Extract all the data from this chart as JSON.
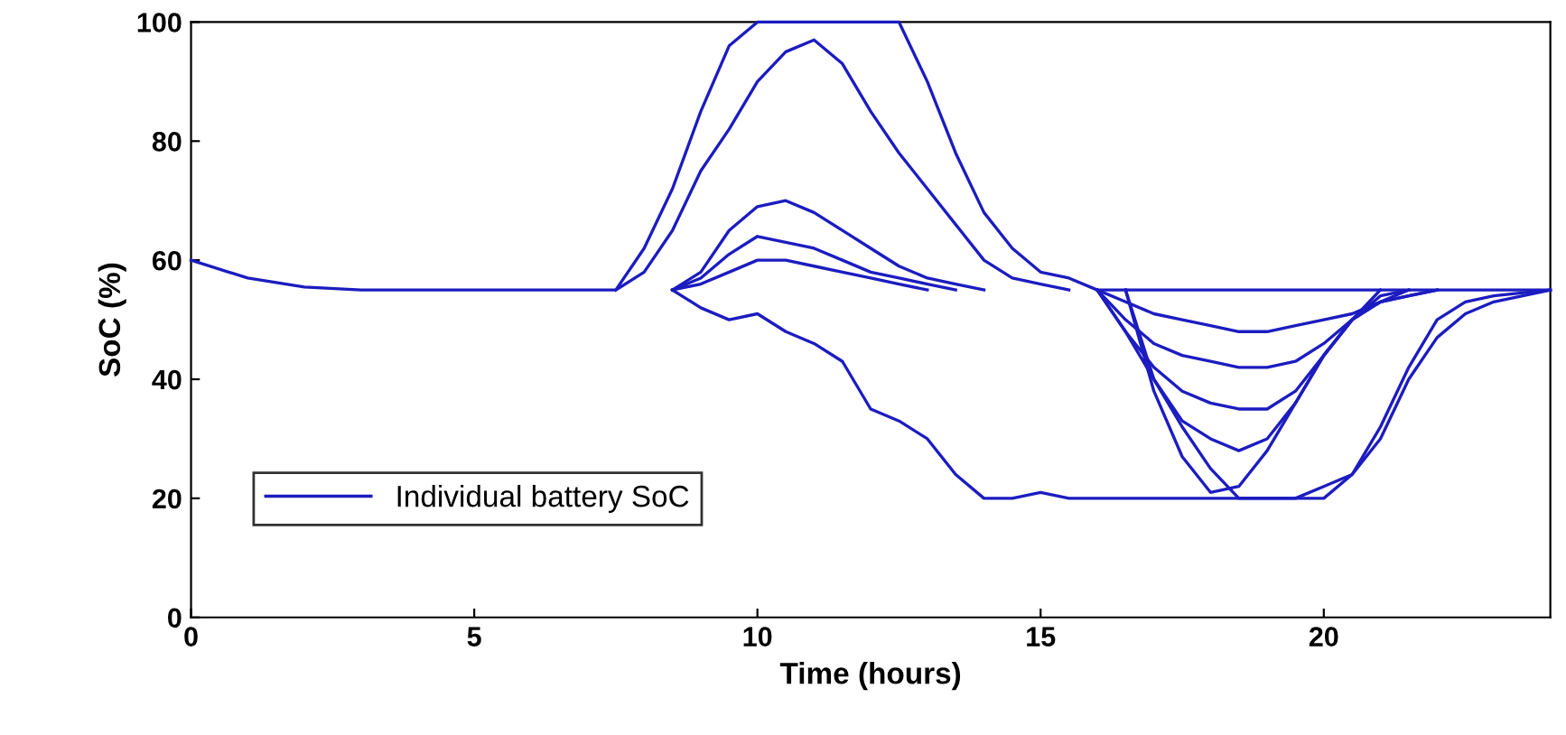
{
  "chart_data": {
    "type": "line",
    "xlabel": "Time (hours)",
    "ylabel": "SoC (%)",
    "xlim": [
      0,
      24
    ],
    "xticks": [
      0,
      5,
      10,
      15,
      20
    ],
    "ylim": [
      0,
      100
    ],
    "yticks": [
      0,
      20,
      40,
      60,
      80,
      100
    ],
    "grid": false,
    "legend": "bottom left",
    "marker": "none",
    "line_style": "solid",
    "series": [
      {
        "name": "Individual battery SoC",
        "color": "#1c1cc0",
        "x": [
          0,
          1,
          2,
          3,
          7.5,
          8,
          8.5,
          9,
          9.5,
          10,
          10.5,
          11,
          11.5,
          12,
          12.5,
          13,
          13.5,
          14,
          14.5,
          15,
          15.5,
          16,
          16.5,
          17,
          17.5,
          18,
          18.5,
          19,
          19.5,
          20,
          20.5,
          21,
          21.5,
          22,
          22.5,
          23,
          24
        ],
        "values": [
          60,
          57,
          55.5,
          55,
          55,
          62,
          72,
          85,
          96,
          100,
          100,
          100,
          100,
          100,
          100,
          90,
          78,
          68,
          62,
          58,
          57,
          55,
          55,
          55,
          55,
          55,
          55,
          55,
          55,
          55,
          55,
          55,
          55,
          55,
          55,
          55,
          55
        ]
      },
      {
        "color": "#1c1cc0",
        "x": [
          7.5,
          8,
          8.5,
          9,
          9.5,
          10,
          10.5,
          11,
          11.5,
          12,
          12.5,
          13,
          13.5,
          14,
          14.5,
          15,
          15.5
        ],
        "values": [
          55,
          58,
          65,
          75,
          82,
          90,
          95,
          97,
          93,
          85,
          78,
          72,
          66,
          60,
          57,
          56,
          55
        ]
      },
      {
        "color": "#1c1cc0",
        "x": [
          8.5,
          9,
          9.5,
          10,
          10.5,
          11,
          11.5,
          12,
          12.5,
          13,
          13.5,
          14,
          14.5,
          15,
          15.5,
          16,
          16.5,
          17,
          17.5,
          18,
          18.5,
          19,
          19.5,
          20,
          20.5,
          21,
          21.5,
          22,
          22.5,
          23,
          24
        ],
        "values": [
          55,
          52,
          50,
          51,
          48,
          46,
          43,
          35,
          33,
          30,
          24,
          20,
          20,
          21,
          20,
          20,
          20,
          20,
          20,
          20,
          20,
          20,
          20,
          22,
          24,
          30,
          40,
          47,
          51,
          53,
          55
        ]
      },
      {
        "color": "#1c1cc0",
        "x": [
          8.5,
          9,
          9.5,
          10,
          10.5,
          11,
          11.5,
          12,
          12.5,
          13,
          13.5,
          14
        ],
        "values": [
          55,
          58,
          65,
          69,
          70,
          68,
          65,
          62,
          59,
          57,
          56,
          55
        ]
      },
      {
        "color": "#1c1cc0",
        "x": [
          8.5,
          9,
          9.5,
          10,
          10.5,
          11,
          11.5,
          12,
          12.5,
          13,
          13.5
        ],
        "values": [
          55,
          57,
          61,
          64,
          63,
          62,
          60,
          58,
          57,
          56,
          55
        ]
      },
      {
        "color": "#1c1cc0",
        "x": [
          8.5,
          9,
          9.5,
          10,
          10.5,
          11,
          11.5,
          12,
          12.5,
          13
        ],
        "values": [
          55,
          56,
          58,
          60,
          60,
          59,
          58,
          57,
          56,
          55
        ]
      },
      {
        "color": "#1c1cc0",
        "x": [
          16,
          16.5,
          17,
          17.5,
          18,
          18.5,
          19,
          19.5,
          20,
          20.5,
          21,
          21.5,
          22
        ],
        "values": [
          55,
          53,
          51,
          50,
          49,
          48,
          48,
          49,
          50,
          51,
          53,
          54,
          55
        ]
      },
      {
        "color": "#1c1cc0",
        "x": [
          16,
          16.5,
          17,
          17.5,
          18,
          18.5,
          19,
          19.5,
          20,
          20.5,
          21,
          21.5
        ],
        "values": [
          55,
          50,
          46,
          44,
          43,
          42,
          42,
          43,
          46,
          50,
          53,
          55
        ]
      },
      {
        "color": "#1c1cc0",
        "x": [
          16,
          16.5,
          17,
          17.5,
          18,
          18.5,
          19,
          19.5,
          20,
          20.5,
          21
        ],
        "values": [
          55,
          48,
          42,
          38,
          36,
          35,
          35,
          38,
          44,
          50,
          55
        ]
      },
      {
        "color": "#1c1cc0",
        "x": [
          16.5,
          17,
          17.5,
          18,
          18.5,
          19,
          19.5,
          20,
          20.5,
          21,
          21.5,
          22
        ],
        "values": [
          55,
          40,
          33,
          30,
          28,
          30,
          36,
          44,
          50,
          53,
          54,
          55
        ]
      },
      {
        "color": "#1c1cc0",
        "x": [
          16.5,
          17,
          17.5,
          18,
          18.5,
          19,
          19.5,
          20,
          20.5,
          21,
          21.5
        ],
        "values": [
          55,
          38,
          27,
          21,
          22,
          28,
          36,
          44,
          50,
          54,
          55
        ]
      },
      {
        "color": "#1c1cc0",
        "x": [
          16,
          16.5,
          17,
          17.5,
          18,
          18.5,
          19,
          19.5,
          20,
          20.5,
          21,
          21.5,
          22,
          22.5,
          23,
          24
        ],
        "values": [
          55,
          48,
          40,
          32,
          25,
          20,
          20,
          20,
          20,
          24,
          32,
          42,
          50,
          53,
          54,
          55
        ]
      }
    ]
  }
}
